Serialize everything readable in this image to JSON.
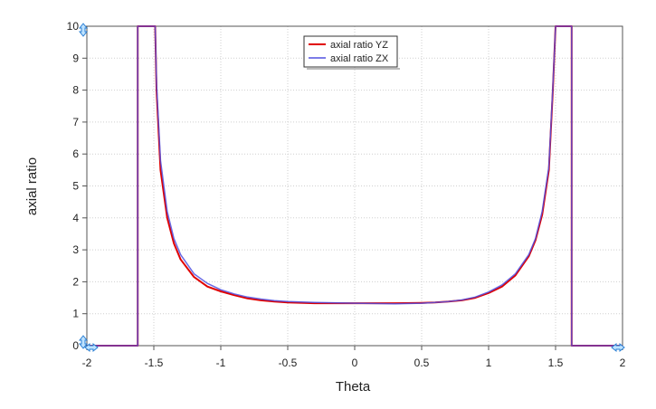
{
  "chart_data": {
    "type": "line",
    "title": "",
    "xlabel": "Theta",
    "ylabel": "axial ratio",
    "xlim": [
      -2,
      2
    ],
    "ylim": [
      0,
      10
    ],
    "x_ticks": [
      "-2",
      "-1.5",
      "-1",
      "-0.5",
      "0",
      "0.5",
      "1",
      "1.5",
      "2"
    ],
    "y_ticks": [
      "0",
      "1",
      "2",
      "3",
      "4",
      "5",
      "6",
      "7",
      "8",
      "9",
      "10"
    ],
    "grid": true,
    "legend_position": "top-center",
    "series": [
      {
        "name": "axial ratio YZ",
        "color": "#e00000",
        "points": [
          [
            -2,
            0
          ],
          [
            -1.62,
            0
          ],
          [
            -1.62,
            10
          ],
          [
            -1.49,
            10
          ],
          [
            -1.48,
            8.0
          ],
          [
            -1.45,
            5.5
          ],
          [
            -1.4,
            4.0
          ],
          [
            -1.35,
            3.2
          ],
          [
            -1.3,
            2.7
          ],
          [
            -1.2,
            2.15
          ],
          [
            -1.1,
            1.85
          ],
          [
            -1.0,
            1.7
          ],
          [
            -0.9,
            1.58
          ],
          [
            -0.8,
            1.48
          ],
          [
            -0.7,
            1.42
          ],
          [
            -0.6,
            1.38
          ],
          [
            -0.5,
            1.35
          ],
          [
            -0.3,
            1.33
          ],
          [
            0,
            1.33
          ],
          [
            0.3,
            1.33
          ],
          [
            0.5,
            1.34
          ],
          [
            0.6,
            1.35
          ],
          [
            0.7,
            1.38
          ],
          [
            0.8,
            1.42
          ],
          [
            0.9,
            1.5
          ],
          [
            1.0,
            1.65
          ],
          [
            1.1,
            1.85
          ],
          [
            1.2,
            2.2
          ],
          [
            1.3,
            2.8
          ],
          [
            1.35,
            3.3
          ],
          [
            1.4,
            4.1
          ],
          [
            1.45,
            5.5
          ],
          [
            1.48,
            8.0
          ],
          [
            1.5,
            10
          ],
          [
            1.62,
            10
          ],
          [
            1.62,
            0
          ],
          [
            2,
            0
          ]
        ]
      },
      {
        "name": "axial ratio ZX",
        "color": "#5050e0",
        "points": [
          [
            -2,
            0
          ],
          [
            -1.62,
            0
          ],
          [
            -1.62,
            10
          ],
          [
            -1.49,
            10
          ],
          [
            -1.48,
            8.2
          ],
          [
            -1.45,
            5.8
          ],
          [
            -1.4,
            4.2
          ],
          [
            -1.35,
            3.35
          ],
          [
            -1.3,
            2.85
          ],
          [
            -1.2,
            2.25
          ],
          [
            -1.1,
            1.95
          ],
          [
            -1.0,
            1.75
          ],
          [
            -0.9,
            1.62
          ],
          [
            -0.8,
            1.52
          ],
          [
            -0.7,
            1.46
          ],
          [
            -0.6,
            1.41
          ],
          [
            -0.5,
            1.38
          ],
          [
            -0.3,
            1.35
          ],
          [
            0,
            1.33
          ],
          [
            0.3,
            1.31
          ],
          [
            0.5,
            1.33
          ],
          [
            0.6,
            1.35
          ],
          [
            0.7,
            1.38
          ],
          [
            0.8,
            1.43
          ],
          [
            0.9,
            1.52
          ],
          [
            1.0,
            1.68
          ],
          [
            1.1,
            1.9
          ],
          [
            1.2,
            2.25
          ],
          [
            1.3,
            2.85
          ],
          [
            1.35,
            3.35
          ],
          [
            1.4,
            4.2
          ],
          [
            1.45,
            5.6
          ],
          [
            1.48,
            8.1
          ],
          [
            1.5,
            10
          ],
          [
            1.62,
            10
          ],
          [
            1.62,
            0
          ],
          [
            2,
            0
          ]
        ]
      }
    ]
  }
}
